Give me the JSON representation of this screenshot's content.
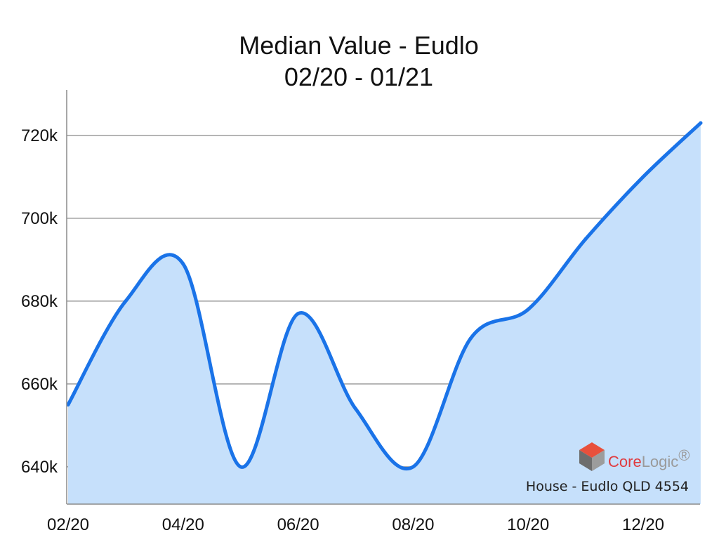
{
  "chart_data": {
    "type": "area",
    "title": "Median Value - Eudlo",
    "subtitle": "02/20 - 01/21",
    "x": [
      "02/20",
      "03/20",
      "04/20",
      "05/20",
      "06/20",
      "07/20",
      "08/20",
      "09/20",
      "10/20",
      "11/20",
      "12/20",
      "01/21"
    ],
    "x_tick_labels": [
      "02/20",
      "04/20",
      "06/20",
      "08/20",
      "10/20",
      "12/20"
    ],
    "y_tick_labels": [
      "640k",
      "660k",
      "680k",
      "700k",
      "720k"
    ],
    "y_ticks": [
      640000,
      660000,
      680000,
      700000,
      720000
    ],
    "ylim": [
      631000,
      731000
    ],
    "series": [
      {
        "values": [
          655000,
          680000,
          689000,
          640000,
          677000,
          654000,
          640000,
          671000,
          678000,
          695000,
          710000,
          723000
        ],
        "line_color": "#1a73e8",
        "fill_color": "#c6e0fb"
      }
    ],
    "grid": true,
    "annotation": "House - Eudlo QLD 4554",
    "brand": {
      "core": "Core",
      "logic": "Logic",
      "tm": "®"
    }
  }
}
